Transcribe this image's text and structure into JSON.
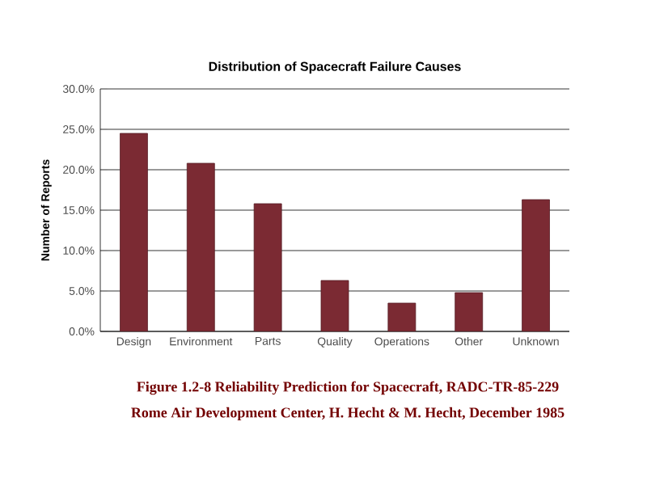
{
  "chart_data": {
    "type": "bar",
    "title": "Distribution of Spacecraft Failure Causes",
    "ylabel": "Number of Reports",
    "categories": [
      "Design",
      "Environment",
      "Parts",
      "Quality",
      "Operations",
      "Other",
      "Unknown"
    ],
    "values": [
      24.5,
      20.8,
      15.8,
      6.3,
      3.5,
      4.8,
      16.3
    ],
    "color": "#7b2a33",
    "ylim": [
      0,
      30
    ],
    "yticks": [
      {
        "value": 0,
        "label": "0.0%"
      },
      {
        "value": 5,
        "label": "5.0%"
      },
      {
        "value": 10,
        "label": "10.0%"
      },
      {
        "value": 15,
        "label": "15.0%"
      },
      {
        "value": 20,
        "label": "20.0%"
      },
      {
        "value": 25,
        "label": "25.0%"
      },
      {
        "value": 30,
        "label": "30.0%"
      }
    ],
    "grid": "y",
    "annotations": [
      "Figure 1.2-8 Reliability Prediction for Spacecraft, RADC-TR-85-229",
      "Rome Air Development Center, H. Hecht & M. Hecht, December 1985"
    ]
  }
}
